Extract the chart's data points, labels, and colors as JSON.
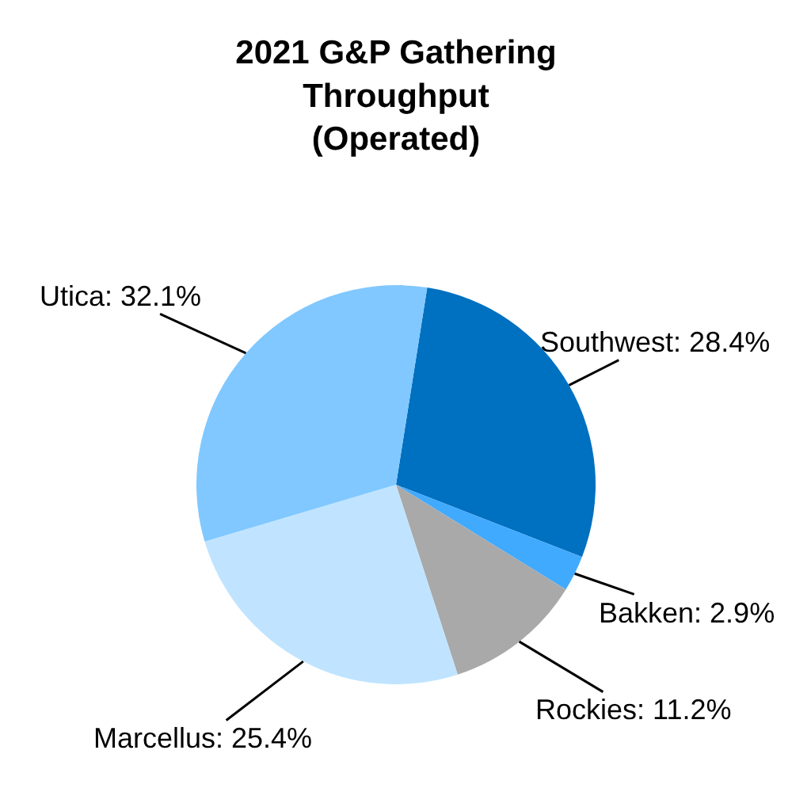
{
  "chart_data": {
    "type": "pie",
    "title": "2021 G&P Gathering Throughput (Operated)",
    "categories": [
      "Southwest",
      "Bakken",
      "Rockies",
      "Marcellus",
      "Utica"
    ],
    "values": [
      28.4,
      2.9,
      11.2,
      25.4,
      32.1
    ],
    "value_labels": [
      "28.4%",
      "2.9%",
      "11.2%",
      "25.4%",
      "32.1%"
    ],
    "colors": [
      "#0070c0",
      "#40aaff",
      "#a9a9a9",
      "#c0e4ff",
      "#80c8ff"
    ],
    "legend": false
  }
}
